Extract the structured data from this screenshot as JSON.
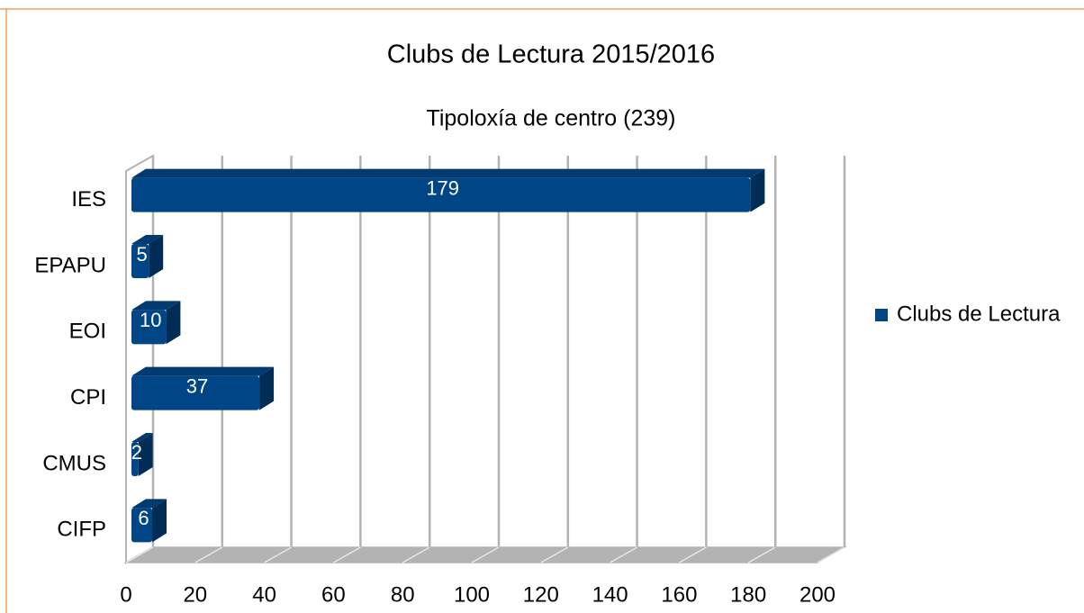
{
  "chart_data": {
    "type": "bar",
    "orientation": "horizontal",
    "title": "Clubs de Lectura 2015/2016",
    "subtitle": "Tipoloxía de centro (239)",
    "categories": [
      "IES",
      "EPAPU",
      "EOI",
      "CPI",
      "CMUS",
      "CIFP"
    ],
    "series": [
      {
        "name": "Clubs de Lectura",
        "color": "#004586",
        "values": [
          179,
          5,
          10,
          37,
          2,
          6
        ]
      }
    ],
    "xlim": [
      0,
      200
    ],
    "xticks": [
      0,
      20,
      40,
      60,
      80,
      100,
      120,
      140,
      160,
      180,
      200
    ],
    "grid": true,
    "legend": "right"
  }
}
